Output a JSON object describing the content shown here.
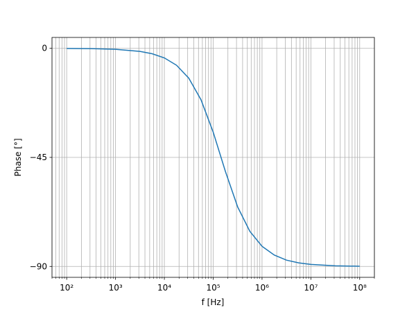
{
  "chart_data": {
    "type": "line",
    "xlabel": "f [Hz]",
    "ylabel": "Phase [°]",
    "log_x": true,
    "grid": true,
    "x": [
      100,
      316.2,
      1000,
      3162,
      5623,
      10000,
      17780,
      31620,
      56230,
      100000,
      177800,
      316200,
      562300,
      1000000,
      1778000,
      3162000,
      5623000,
      10000000,
      31620000,
      100000000
    ],
    "series": [
      {
        "color": "#1f77b4",
        "values": [
          -0.04,
          -0.12,
          -0.4,
          -1.25,
          -2.22,
          -3.95,
          -6.99,
          -12.3,
          -21.2,
          -34.6,
          -50.8,
          -65.4,
          -75.5,
          -81.7,
          -85.3,
          -87.4,
          -88.52,
          -89.17,
          -89.74,
          -89.92
        ]
      }
    ],
    "xlim": [
      50,
      200000000
    ],
    "ylim": [
      -94.5,
      4.5
    ],
    "xticks": [
      {
        "value": 100,
        "label": "10²"
      },
      {
        "value": 1000,
        "label": "10³"
      },
      {
        "value": 10000,
        "label": "10⁴"
      },
      {
        "value": 100000,
        "label": "10⁵"
      },
      {
        "value": 1000000,
        "label": "10⁶"
      },
      {
        "value": 10000000,
        "label": "10⁷"
      },
      {
        "value": 100000000,
        "label": "10⁸"
      }
    ],
    "xminorticks": [
      50,
      60,
      70,
      80,
      90,
      200,
      300,
      400,
      500,
      600,
      700,
      800,
      900,
      2000,
      3000,
      4000,
      5000,
      6000,
      7000,
      8000,
      9000,
      20000,
      30000,
      40000,
      50000,
      60000,
      70000,
      80000,
      90000,
      200000,
      300000,
      400000,
      500000,
      600000,
      700000,
      800000,
      900000,
      2000000,
      3000000,
      4000000,
      5000000,
      6000000,
      7000000,
      8000000,
      9000000,
      20000000,
      30000000,
      40000000,
      50000000,
      60000000,
      70000000,
      80000000,
      90000000,
      200000000
    ],
    "yticks": [
      0,
      {
        "value": -45,
        "label": "−45"
      },
      {
        "value": -90,
        "label": "−90"
      }
    ]
  }
}
